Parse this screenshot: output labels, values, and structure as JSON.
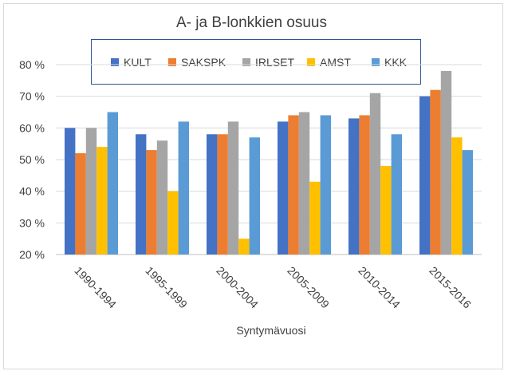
{
  "chart_data": {
    "type": "bar",
    "title": "A- ja B-lonkkien osuus",
    "xlabel": "Syntymävuosi",
    "ylabel": "",
    "ylim": [
      20,
      80
    ],
    "yticks": [
      "20 %",
      "30 %",
      "40 %",
      "50 %",
      "60 %",
      "70 %",
      "80 %"
    ],
    "grid": true,
    "legend_position": "top",
    "categories": [
      "1990-1994",
      "1995-1999",
      "2000-2004",
      "2005-2009",
      "2010-2014",
      "2015-2016"
    ],
    "series": [
      {
        "name": "KULT",
        "color": "#4472c4",
        "values": [
          60,
          58,
          58,
          62,
          63,
          70
        ]
      },
      {
        "name": "SAKSPK",
        "color": "#ed7d31",
        "values": [
          52,
          53,
          58,
          64,
          64,
          72
        ]
      },
      {
        "name": "IRLSET",
        "color": "#a5a5a5",
        "values": [
          60,
          56,
          62,
          65,
          71,
          78
        ]
      },
      {
        "name": "AMST",
        "color": "#ffc000",
        "values": [
          54,
          40,
          25,
          43,
          48,
          57
        ]
      },
      {
        "name": "KKK",
        "color": "#5b9bd5",
        "values": [
          65,
          62,
          57,
          64,
          58,
          53
        ]
      }
    ]
  }
}
